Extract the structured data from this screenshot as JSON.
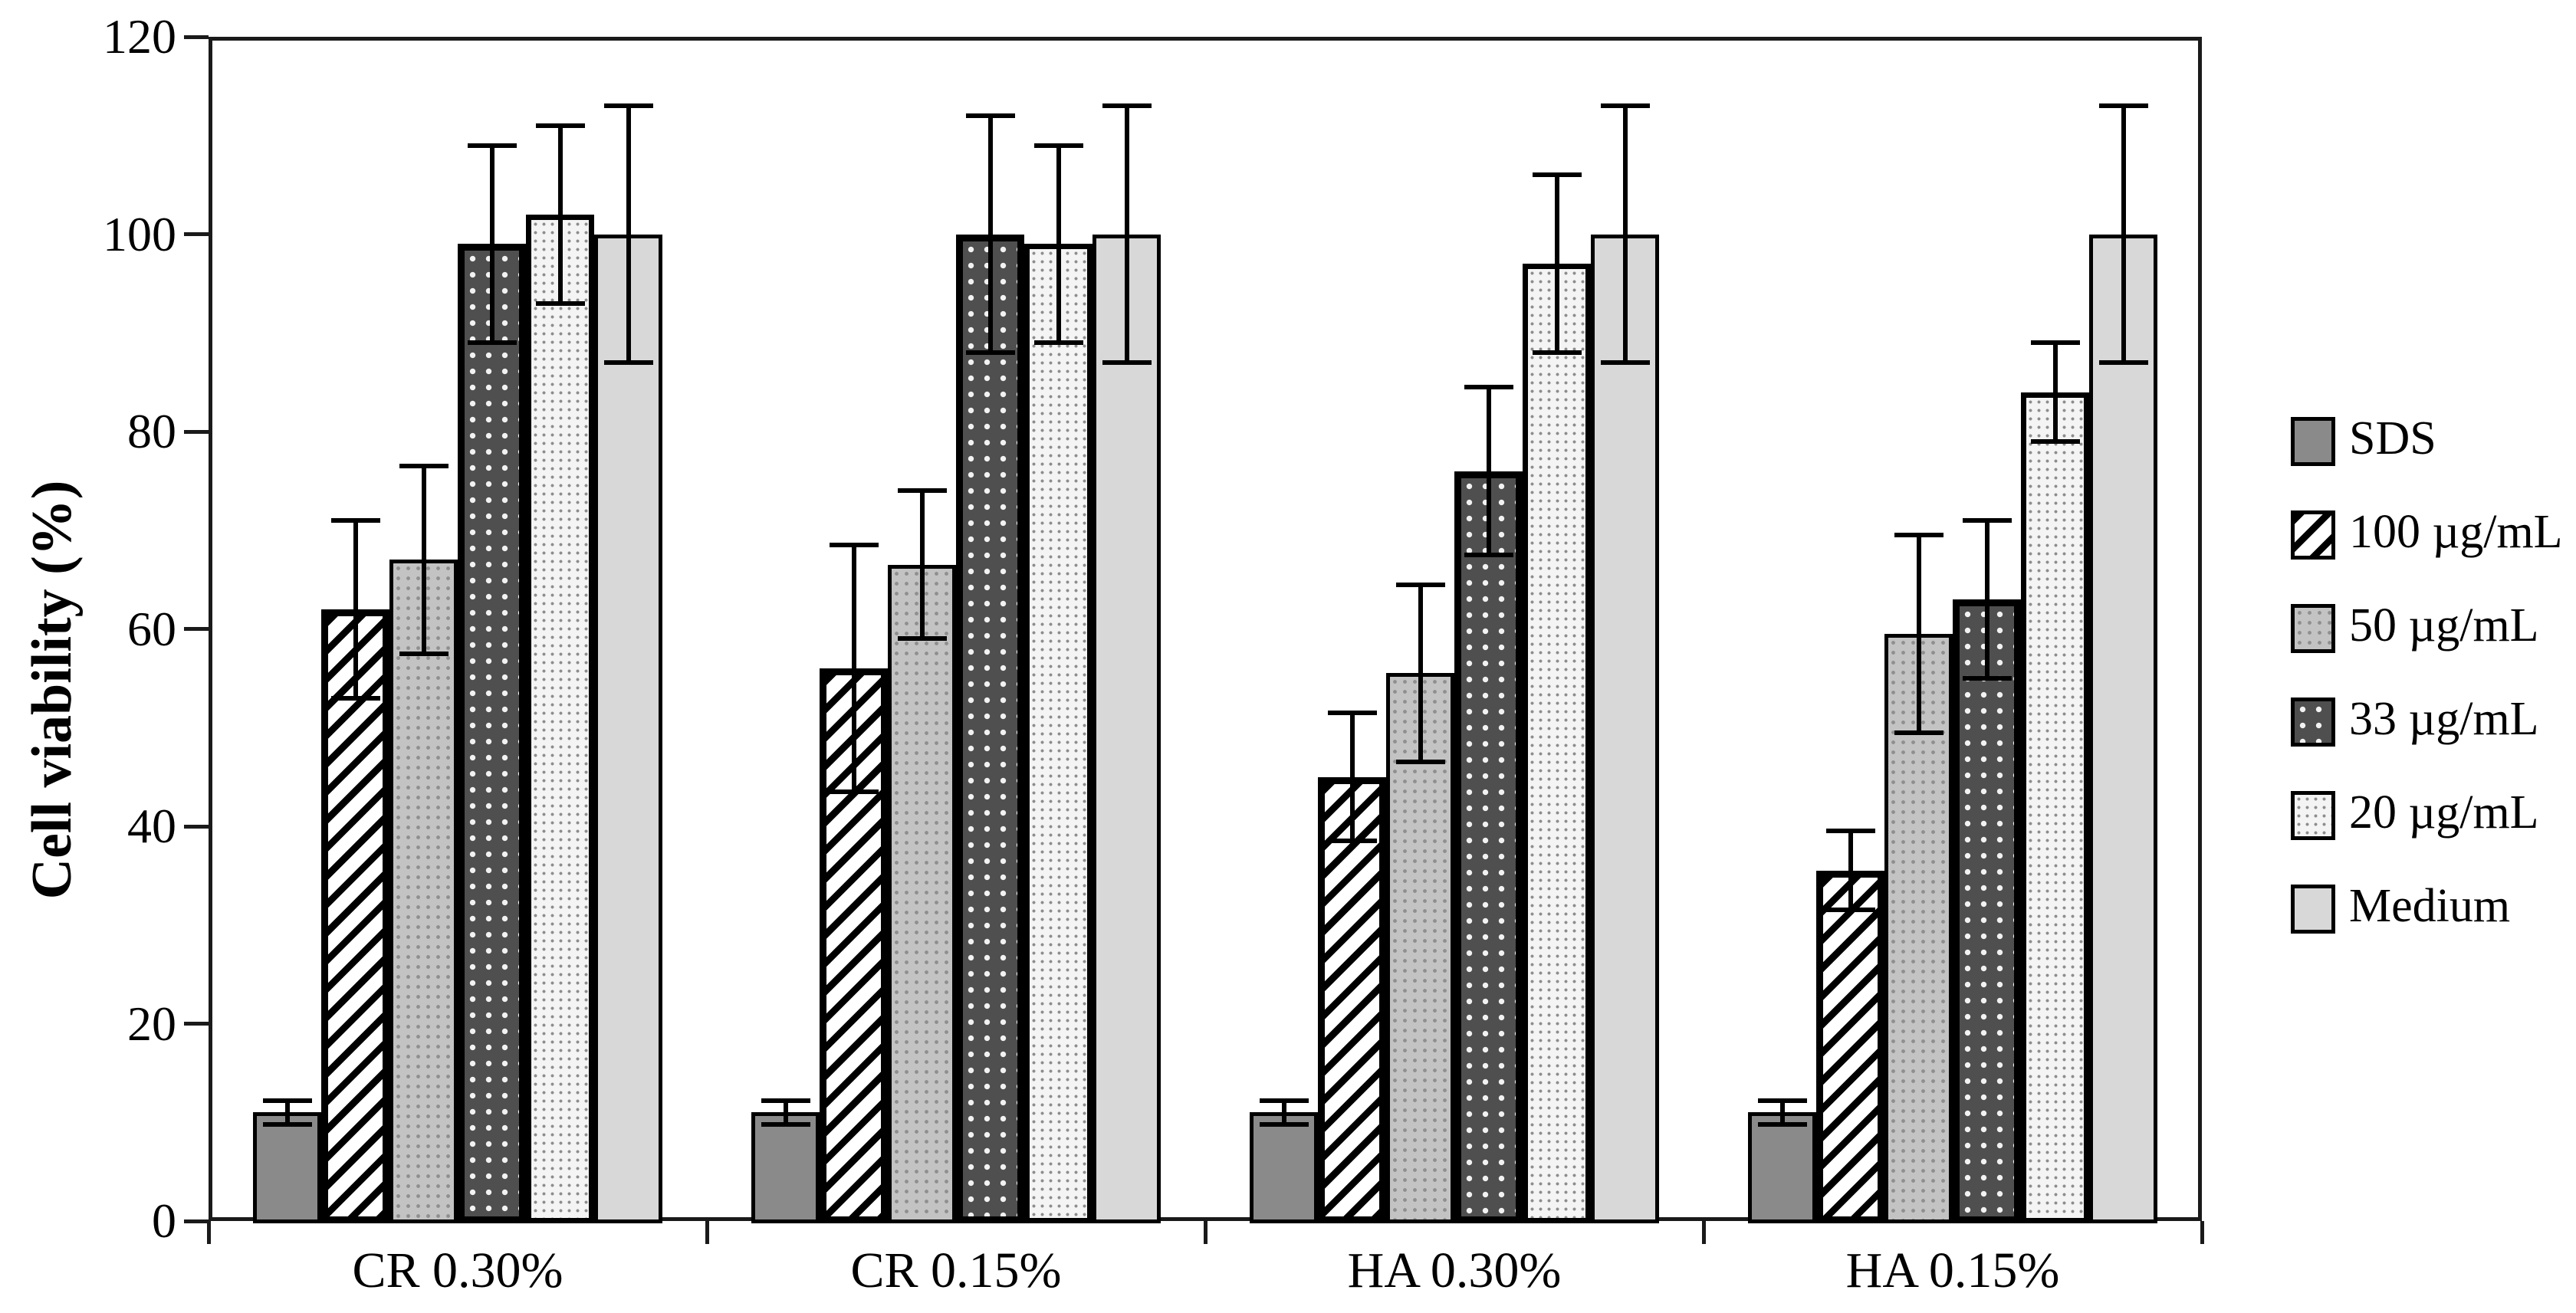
{
  "figure": {
    "kind": "grouped-bar-figure",
    "background": "#ffffff",
    "frame_color": "#1a1a1a"
  },
  "y_axis": {
    "title": "Cell viability (%)",
    "tick_labels": [
      "0",
      "20",
      "40",
      "60",
      "80",
      "100",
      "120"
    ],
    "min": 0,
    "max": 120
  },
  "x_axis": {
    "category_labels": [
      "CR 0.30%",
      "CR 0.15%",
      "HA 0.30%",
      "HA 0.15%"
    ]
  },
  "legend": {
    "position": "right",
    "items": [
      {
        "key": "sds",
        "label": "SDS"
      },
      {
        "key": "100",
        "label": "100 µg/mL"
      },
      {
        "key": "50",
        "label": "50 µg/mL"
      },
      {
        "key": "33",
        "label": "33 µg/mL"
      },
      {
        "key": "20",
        "label": "20 µg/mL"
      },
      {
        "key": "medium",
        "label": "Medium"
      }
    ]
  },
  "colors": {
    "sds_fill": "#8a8a8a",
    "hatch_ink": "#000000",
    "gray50_fill": "#c3c3c3",
    "dark33_fill": "#4f4f4f",
    "dot20_fill": "#f4f4f4",
    "medium_fill": "#d8d8d8",
    "error_bar": "#000000"
  },
  "chart_data": {
    "type": "bar",
    "title": "",
    "xlabel": "",
    "ylabel": "Cell viability (%)",
    "ylim": [
      0,
      120
    ],
    "ytick_step": 20,
    "grid": false,
    "legend_position": "right",
    "error_bars": true,
    "categories": [
      "CR 0.30%",
      "CR 0.15%",
      "HA 0.30%",
      "HA 0.15%"
    ],
    "series": [
      {
        "key": "sds",
        "name": "SDS",
        "values": [
          11,
          11,
          11,
          11
        ],
        "errors": [
          1.2,
          1.2,
          1.2,
          1.2
        ]
      },
      {
        "key": "100",
        "name": "100 µg/mL",
        "values": [
          62,
          56,
          45,
          35.5
        ],
        "errors": [
          9,
          12.5,
          6.5,
          4
        ]
      },
      {
        "key": "50",
        "name": "50 µg/mL",
        "values": [
          67,
          66.5,
          55.5,
          59.5
        ],
        "errors": [
          9.5,
          7.5,
          9,
          10
        ]
      },
      {
        "key": "33",
        "name": "33 µg/mL",
        "values": [
          99,
          100,
          76,
          63
        ],
        "errors": [
          10,
          12,
          8.5,
          8
        ]
      },
      {
        "key": "20",
        "name": "20 µg/mL",
        "values": [
          102,
          99,
          97,
          84
        ],
        "errors": [
          9,
          10,
          9,
          5
        ]
      },
      {
        "key": "medium",
        "name": "Medium",
        "values": [
          100,
          100,
          100,
          100
        ],
        "errors": [
          13,
          13,
          13,
          13
        ]
      }
    ]
  }
}
